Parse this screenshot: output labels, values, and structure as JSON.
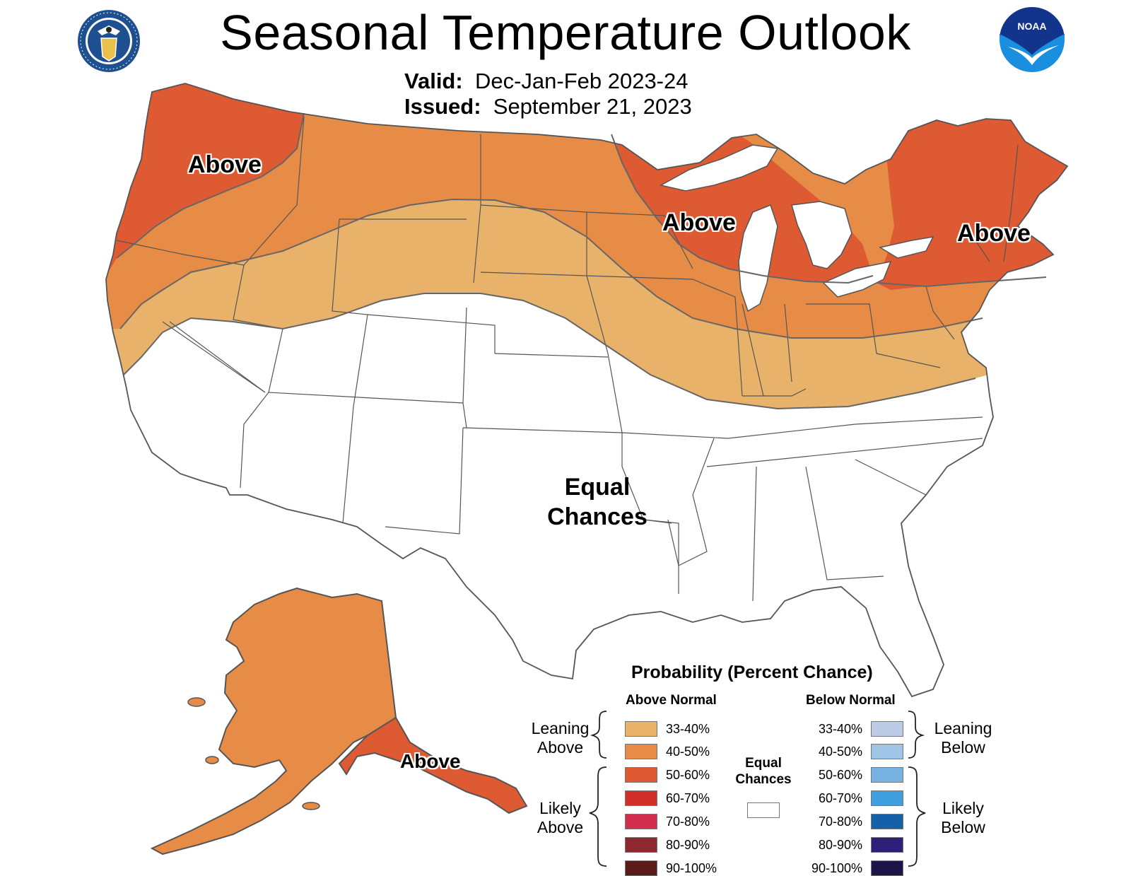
{
  "header": {
    "title": "Seasonal Temperature Outlook",
    "valid_label": "Valid:",
    "valid_value": "Dec-Jan-Feb 2023-24",
    "issued_label": "Issued:",
    "issued_value": "September 21, 2023"
  },
  "logos": {
    "left": "US Department of Commerce seal",
    "right": "NOAA"
  },
  "map": {
    "labels": {
      "northwest": "Above",
      "great_lakes": "Above",
      "northeast": "Above",
      "alaska": "Above",
      "equal_line1": "Equal",
      "equal_line2": "Chances"
    },
    "colors": {
      "band_33_40": "#e9b26a",
      "band_40_50": "#e68c47",
      "band_50_60": "#de5a32",
      "state_border": "#555555",
      "background": "#ffffff"
    }
  },
  "legend": {
    "title": "Probability (Percent Chance)",
    "above_header": "Above Normal",
    "below_header": "Below Normal",
    "leaning_above": [
      "Leaning",
      "Above"
    ],
    "likely_above": [
      "Likely",
      "Above"
    ],
    "leaning_below": [
      "Leaning",
      "Below"
    ],
    "likely_below": [
      "Likely",
      "Below"
    ],
    "equal_chances": [
      "Equal",
      "Chances"
    ],
    "above_rows": [
      {
        "range": "33-40%",
        "color": "#e9b26a"
      },
      {
        "range": "40-50%",
        "color": "#e68c47"
      },
      {
        "range": "50-60%",
        "color": "#de5a32"
      },
      {
        "range": "60-70%",
        "color": "#d12f2a"
      },
      {
        "range": "70-80%",
        "color": "#d12d4f"
      },
      {
        "range": "80-90%",
        "color": "#8e2830"
      },
      {
        "range": "90-100%",
        "color": "#5a1a1a"
      }
    ],
    "below_rows": [
      {
        "range": "33-40%",
        "color": "#bccbe6"
      },
      {
        "range": "40-50%",
        "color": "#9ec4e6"
      },
      {
        "range": "50-60%",
        "color": "#76b3e3"
      },
      {
        "range": "60-70%",
        "color": "#3f9fdf"
      },
      {
        "range": "70-80%",
        "color": "#1560a9"
      },
      {
        "range": "80-90%",
        "color": "#2d1f7a"
      },
      {
        "range": "90-100%",
        "color": "#1c1648"
      }
    ]
  }
}
